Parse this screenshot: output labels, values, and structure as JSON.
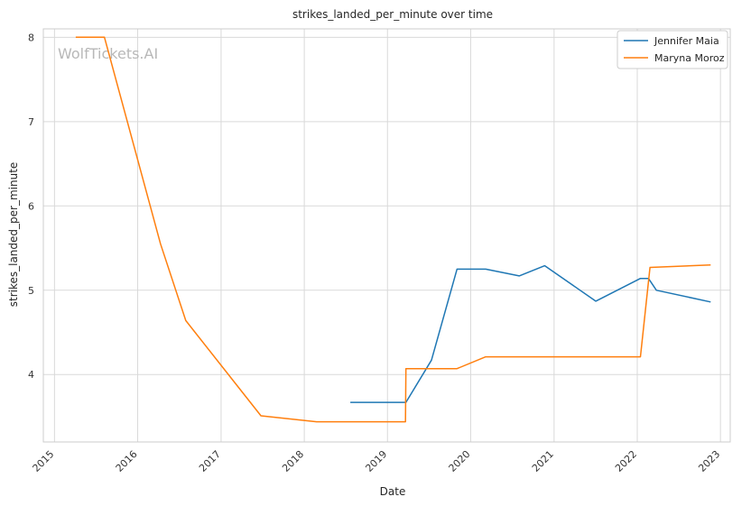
{
  "chart_data": {
    "type": "line",
    "title": "strikes_landed_per_minute over time",
    "xlabel": "Date",
    "ylabel": "strikes_landed_per_minute",
    "x_ticks": [
      "2015",
      "2016",
      "2017",
      "2018",
      "2019",
      "2020",
      "2021",
      "2022",
      "2023"
    ],
    "y_ticks": [
      "4",
      "5",
      "6",
      "7",
      "8"
    ],
    "xlim": [
      "2014-11-13",
      "2023-02-13"
    ],
    "ylim": [
      3.2,
      8.1
    ],
    "grid": true,
    "legend_position": "top-right",
    "watermark": "WolfTickets.AI",
    "series": [
      {
        "name": "Jennifer Maia",
        "color": "#1f77b4",
        "points": [
          [
            "2018-07-22",
            3.67
          ],
          [
            "2019-03-23",
            3.67
          ],
          [
            "2019-07-13",
            4.17
          ],
          [
            "2019-11-02",
            5.25
          ],
          [
            "2020-03-07",
            5.25
          ],
          [
            "2020-08-01",
            5.17
          ],
          [
            "2020-11-21",
            5.29
          ],
          [
            "2021-07-03",
            4.87
          ],
          [
            "2022-01-15",
            5.14
          ],
          [
            "2022-02-19",
            5.14
          ],
          [
            "2022-03-26",
            5.0
          ],
          [
            "2022-11-19",
            4.86
          ]
        ]
      },
      {
        "name": "Maryna Moroz",
        "color": "#ff7f0e",
        "points": [
          [
            "2015-04-04",
            8.0
          ],
          [
            "2015-08-08",
            8.0
          ],
          [
            "2016-04-10",
            5.55
          ],
          [
            "2016-07-30",
            4.64
          ],
          [
            "2017-06-25",
            3.51
          ],
          [
            "2018-02-24",
            3.44
          ],
          [
            "2019-03-21",
            3.44
          ],
          [
            "2019-03-23",
            4.07
          ],
          [
            "2019-11-02",
            4.07
          ],
          [
            "2020-03-07",
            4.21
          ],
          [
            "2022-01-15",
            4.21
          ],
          [
            "2022-02-26",
            5.27
          ],
          [
            "2022-11-19",
            5.3
          ]
        ]
      }
    ]
  }
}
